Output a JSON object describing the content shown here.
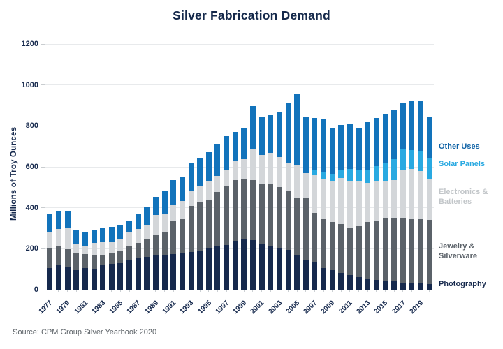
{
  "title": "Silver Fabrication Demand",
  "source": "Source: CPM Group Silver Yearbook 2020",
  "chart_data": {
    "type": "bar",
    "stacked": true,
    "title": "Silver Fabrication Demand",
    "ylabel": "Millions of Troy Ounces",
    "xlabel": "",
    "ylim": [
      0,
      1200
    ],
    "y_ticks": [
      0,
      200,
      400,
      600,
      800,
      1000,
      1200
    ],
    "grid": true,
    "legend_position": "right",
    "years": [
      1977,
      1978,
      1979,
      1980,
      1981,
      1982,
      1983,
      1984,
      1985,
      1986,
      1987,
      1988,
      1989,
      1990,
      1991,
      1992,
      1993,
      1994,
      1995,
      1996,
      1997,
      1998,
      1999,
      2000,
      2001,
      2002,
      2003,
      2004,
      2005,
      2006,
      2007,
      2008,
      2009,
      2010,
      2011,
      2012,
      2013,
      2014,
      2015,
      2016,
      2017,
      2018,
      2019,
      2020
    ],
    "x_tick_labels": [
      "1977",
      "1979",
      "1981",
      "1983",
      "1985",
      "1987",
      "1989",
      "1991",
      "1993",
      "1995",
      "1997",
      "1999",
      "2001",
      "2003",
      "2005",
      "2007",
      "2009",
      "2011",
      "2013",
      "2015",
      "2017",
      "2019"
    ],
    "series": [
      {
        "name": "Photography",
        "color": "#16294d",
        "values": [
          105,
          119,
          111,
          97,
          106,
          102,
          119,
          125,
          128,
          142,
          153,
          159,
          167,
          171,
          174,
          178,
          185,
          190,
          201,
          210,
          219,
          239,
          244,
          241,
          224,
          210,
          205,
          193,
          171,
          144,
          133,
          106,
          94,
          83,
          71,
          62,
          55,
          49,
          42,
          40,
          34,
          33,
          31,
          29
        ]
      },
      {
        "name": "Jewelry & Silverware",
        "color": "#5b6269",
        "values": [
          100,
          92,
          88,
          85,
          68,
          65,
          51,
          53,
          60,
          74,
          74,
          91,
          102,
          113,
          159,
          166,
          224,
          236,
          234,
          267,
          285,
          295,
          298,
          293,
          293,
          307,
          295,
          290,
          280,
          305,
          242,
          238,
          236,
          239,
          230,
          248,
          275,
          286,
          305,
          312,
          313,
          311,
          313,
          312
        ]
      },
      {
        "name": "Electronics & Batteries",
        "color": "#d3d6d9",
        "values": [
          79,
          85,
          102,
          40,
          42,
          60,
          63,
          57,
          56,
          62,
          69,
          65,
          95,
          88,
          82,
          88,
          72,
          80,
          94,
          80,
          81,
          97,
          95,
          156,
          142,
          150,
          148,
          139,
          159,
          119,
          185,
          196,
          201,
          224,
          228,
          219,
          193,
          196,
          182,
          182,
          238,
          247,
          236,
          199
        ]
      },
      {
        "name": "Solar Panels",
        "color": "#29a9e1",
        "values": [
          0,
          0,
          0,
          0,
          0,
          0,
          0,
          0,
          0,
          0,
          0,
          0,
          0,
          0,
          0,
          0,
          0,
          0,
          0,
          0,
          0,
          0,
          0,
          0,
          0,
          0,
          0,
          0,
          0,
          0,
          23,
          32,
          34,
          39,
          62,
          54,
          65,
          71,
          88,
          103,
          103,
          91,
          96,
          102
        ]
      },
      {
        "name": "Other Uses",
        "color": "#1273bb",
        "values": [
          85,
          90,
          81,
          68,
          65,
          63,
          66,
          72,
          74,
          60,
          76,
          88,
          91,
          113,
          119,
          122,
          139,
          136,
          142,
          151,
          165,
          139,
          150,
          208,
          188,
          186,
          222,
          288,
          348,
          275,
          255,
          261,
          222,
          220,
          218,
          205,
          230,
          236,
          243,
          238,
          222,
          243,
          244,
          203
        ]
      }
    ]
  },
  "legend": {
    "items": [
      {
        "label": "Other Uses",
        "color": "#0f63a6"
      },
      {
        "label": "Solar Panels",
        "color": "#29a9e1"
      },
      {
        "label": "Electronics & Batteries",
        "color": "#c2c6c9"
      },
      {
        "label": "Jewelry & Silverware",
        "color": "#5b6269"
      },
      {
        "label": "Photography",
        "color": "#16294d"
      }
    ]
  }
}
